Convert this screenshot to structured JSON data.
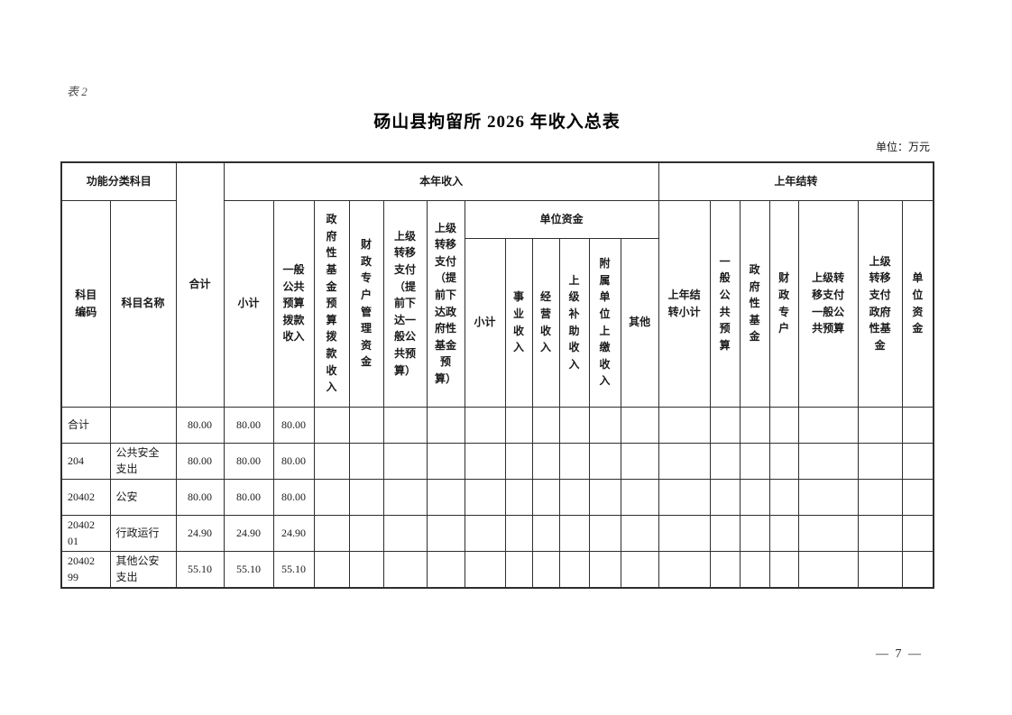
{
  "page": {
    "table_label": "表 2",
    "title": "砀山县拘留所 2026 年收入总表",
    "unit_note": "单位：万元",
    "page_number": "— 7 —"
  },
  "table": {
    "header": {
      "function_category": "功能分类科目",
      "subject_code": "科目\n编码",
      "subject_name": "科目名称",
      "total": "合计",
      "current_year": "本年收入",
      "carryover": "上年结转",
      "cy_subtotal": "小计",
      "cy_general_public": "一般\n公共\n预算\n拨款\n收入",
      "cy_gov_fund": "政\n府\n性\n基\n金\n预\n算\n拨\n款\n收\n入",
      "cy_fiscal_account": "财\n政\n专\n户\n管\n理\n资\n金",
      "cy_transfer_general": "上级\n转移\n支付\n（提\n前下\n达一\n般公\n共预\n算）",
      "cy_transfer_fund": "上级\n转移\n支付\n（提\n前下\n达政\n府性\n基金\n预\n算）",
      "unit_funds": "单位资金",
      "uf_subtotal": "小计",
      "uf_business": "事\n业\n收\n入",
      "uf_operating": "经\n营\n收\n入",
      "uf_subsidy": "上\n级\n补\n助\n收\n入",
      "uf_affiliated": "附\n属\n单\n位\n上\n缴\n收\n入",
      "uf_other": "其他",
      "co_subtotal": "上年结\n转小计",
      "co_general_public": "一\n般\n公\n共\n预\n算",
      "co_gov_fund": "政\n府\n性\n基\n金",
      "co_fiscal_account": "财\n政\n专\n户",
      "co_transfer_general": "上级转\n移支付\n一般公\n共预算",
      "co_transfer_fund": "上级\n转移\n支付\n政府\n性基\n金",
      "co_unit_funds": "单\n位\n资\n金"
    },
    "rows": [
      {
        "code": "合计",
        "name": "",
        "values": [
          "80.00",
          "80.00",
          "80.00",
          "",
          "",
          "",
          "",
          "",
          "",
          "",
          "",
          "",
          "",
          "",
          "",
          "",
          "",
          "",
          "",
          ""
        ]
      },
      {
        "code": "204",
        "name": "公共安全\n支出",
        "values": [
          "80.00",
          "80.00",
          "80.00",
          "",
          "",
          "",
          "",
          "",
          "",
          "",
          "",
          "",
          "",
          "",
          "",
          "",
          "",
          "",
          "",
          ""
        ]
      },
      {
        "code": "20402",
        "name": "公安",
        "values": [
          "80.00",
          "80.00",
          "80.00",
          "",
          "",
          "",
          "",
          "",
          "",
          "",
          "",
          "",
          "",
          "",
          "",
          "",
          "",
          "",
          "",
          ""
        ]
      },
      {
        "code": "20402\n01",
        "name": "行政运行",
        "values": [
          "24.90",
          "24.90",
          "24.90",
          "",
          "",
          "",
          "",
          "",
          "",
          "",
          "",
          "",
          "",
          "",
          "",
          "",
          "",
          "",
          "",
          ""
        ]
      },
      {
        "code": "20402\n99",
        "name": "其他公安\n支出",
        "values": [
          "55.10",
          "55.10",
          "55.10",
          "",
          "",
          "",
          "",
          "",
          "",
          "",
          "",
          "",
          "",
          "",
          "",
          "",
          "",
          "",
          "",
          ""
        ]
      }
    ]
  }
}
